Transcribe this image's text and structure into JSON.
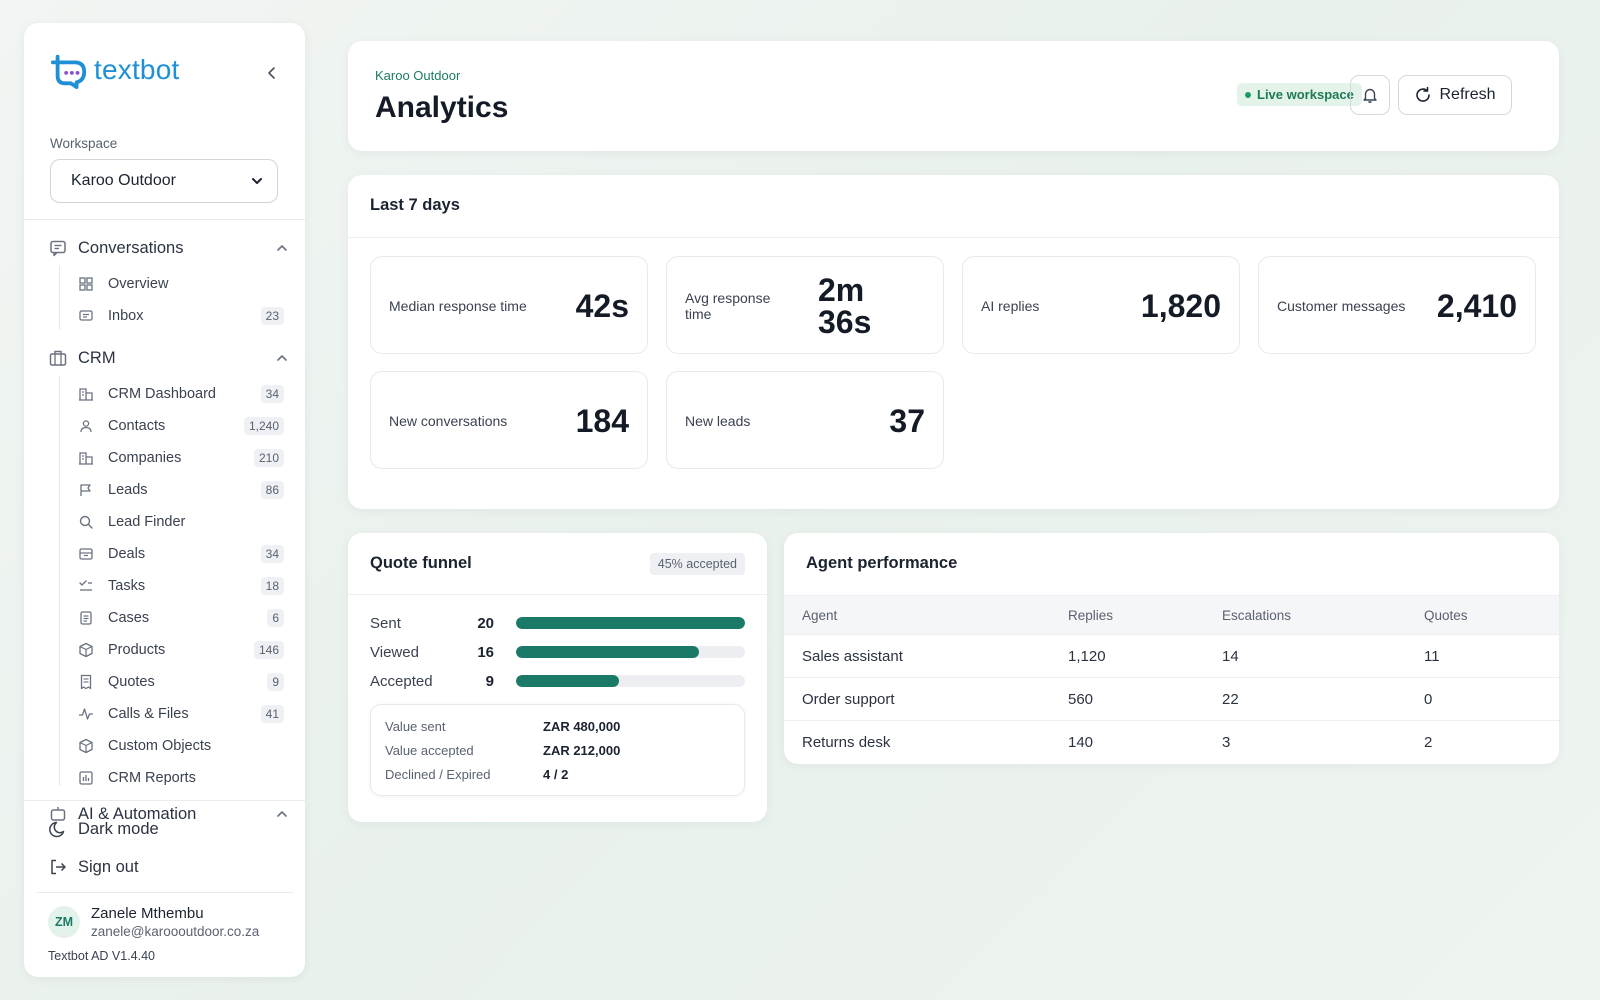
{
  "app": {
    "name": "textbot",
    "version": "Textbot AD V1.4.40"
  },
  "sidebar": {
    "workspace_label": "Workspace",
    "workspace_value": "Karoo Outdoor",
    "sections": [
      {
        "title": "Conversations",
        "items": [
          {
            "label": "Overview",
            "badge": ""
          },
          {
            "label": "Inbox",
            "badge": "23"
          }
        ]
      },
      {
        "title": "CRM",
        "items": [
          {
            "label": "CRM Dashboard",
            "badge": "34"
          },
          {
            "label": "Contacts",
            "badge": "1,240"
          },
          {
            "label": "Companies",
            "badge": "210"
          },
          {
            "label": "Leads",
            "badge": "86"
          },
          {
            "label": "Lead Finder",
            "badge": ""
          },
          {
            "label": "Deals",
            "badge": "34"
          },
          {
            "label": "Tasks",
            "badge": "18"
          },
          {
            "label": "Cases",
            "badge": "6"
          },
          {
            "label": "Products",
            "badge": "146"
          },
          {
            "label": "Quotes",
            "badge": "9"
          },
          {
            "label": "Calls & Files",
            "badge": "41"
          },
          {
            "label": "Custom Objects",
            "badge": ""
          },
          {
            "label": "CRM Reports",
            "badge": ""
          }
        ]
      },
      {
        "title": "AI & Automation",
        "items": []
      }
    ],
    "dark_mode_label": "Dark mode",
    "sign_out_label": "Sign out",
    "user": {
      "initials": "ZM",
      "name": "Zanele Mthembu",
      "email": "zanele@karoooutdoor.co.za"
    }
  },
  "header": {
    "breadcrumb": "Karoo Outdoor",
    "title": "Analytics",
    "live_badge": "Live workspace",
    "refresh_label": "Refresh"
  },
  "last7": {
    "title": "Last 7 days",
    "stats": [
      {
        "label": "Median response time",
        "value": "42s"
      },
      {
        "label": "Avg response time",
        "value": "2m 36s"
      },
      {
        "label": "AI replies",
        "value": "1,820"
      },
      {
        "label": "Customer messages",
        "value": "2,410"
      },
      {
        "label": "New conversations",
        "value": "184"
      },
      {
        "label": "New leads",
        "value": "37"
      }
    ]
  },
  "funnel": {
    "title": "Quote funnel",
    "badge": "45% accepted",
    "rows": [
      {
        "label": "Sent",
        "value": 20
      },
      {
        "label": "Viewed",
        "value": 16
      },
      {
        "label": "Accepted",
        "value": 9
      }
    ],
    "max": 20,
    "details": [
      {
        "label": "Value sent",
        "value": "ZAR 480,000"
      },
      {
        "label": "Value accepted",
        "value": "ZAR 212,000"
      },
      {
        "label": "Declined / Expired",
        "value": "4 / 2"
      }
    ]
  },
  "agents": {
    "title": "Agent performance",
    "columns": [
      "Agent",
      "Replies",
      "Escalations",
      "Quotes"
    ],
    "rows": [
      [
        "Sales assistant",
        "1,120",
        "14",
        "11"
      ],
      [
        "Order support",
        "560",
        "22",
        "0"
      ],
      [
        "Returns desk",
        "140",
        "3",
        "2"
      ]
    ]
  },
  "colors": {
    "accent": "#1a7a67",
    "brand": "#1f8fd6"
  }
}
